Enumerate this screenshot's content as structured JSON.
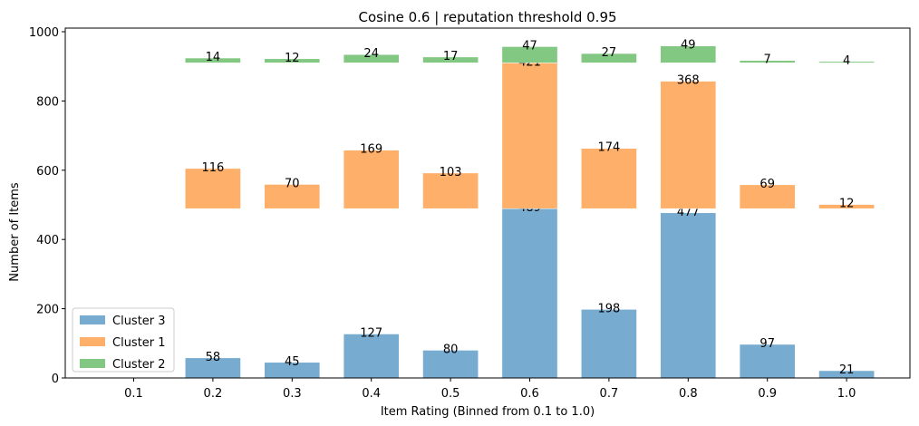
{
  "chart_data": {
    "type": "bar",
    "stacked": "offset-by-previous-series-max",
    "title": "Cosine 0.6 | reputation threshold 0.95",
    "xlabel": "Item Rating (Binned from 0.1 to 1.0)",
    "ylabel": "Number of Items",
    "categories": [
      "0.1",
      "0.2",
      "0.3",
      "0.4",
      "0.5",
      "0.6",
      "0.7",
      "0.8",
      "0.9",
      "1.0"
    ],
    "ylim": [
      0,
      1000
    ],
    "yticks": [
      0,
      200,
      400,
      600,
      800,
      1000
    ],
    "grid": false,
    "legend_position": "lower-left",
    "series": [
      {
        "name": "Cluster 3",
        "color": "#77acd0",
        "values": [
          0,
          58,
          45,
          127,
          80,
          489,
          198,
          477,
          97,
          21
        ]
      },
      {
        "name": "Cluster 1",
        "color": "#feb06a",
        "values": [
          0,
          116,
          70,
          169,
          103,
          421,
          174,
          368,
          69,
          12
        ]
      },
      {
        "name": "Cluster 2",
        "color": "#82c882",
        "values": [
          0,
          14,
          12,
          24,
          17,
          47,
          27,
          49,
          7,
          4
        ]
      }
    ]
  }
}
